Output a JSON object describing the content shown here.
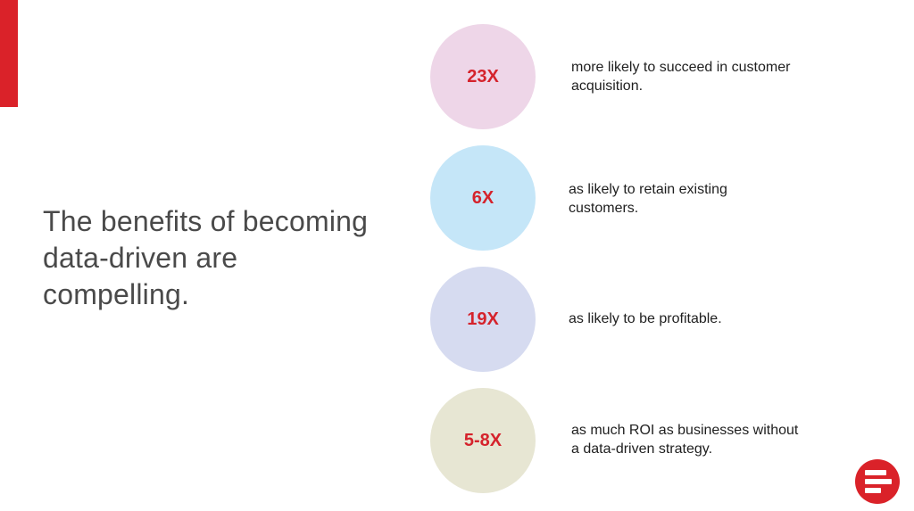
{
  "theme": {
    "accent": "#da2229",
    "stat_value_color": "#d5232c",
    "heading_color": "#4a4a4a"
  },
  "slide": {
    "headline": "The benefits of becoming data-driven are compelling."
  },
  "stats": [
    {
      "value": "23X",
      "description": "more likely to succeed in customer acquisition.",
      "circle_color": "#eed6e8"
    },
    {
      "value": "6X",
      "description": "as likely to retain existing customers.",
      "circle_color": "#c5e6f8"
    },
    {
      "value": "19X",
      "description": "as likely to be profitable.",
      "circle_color": "#d6dbf0"
    },
    {
      "value": "5-8X",
      "description": "as much ROI as businesses without a data-driven strategy.",
      "circle_color": "#e7e6d3"
    }
  ],
  "logo": {
    "icon": "brand-logo-icon"
  }
}
